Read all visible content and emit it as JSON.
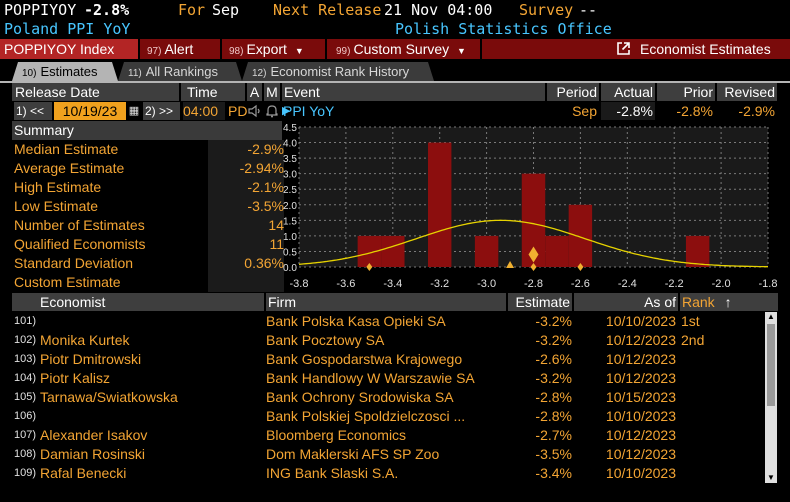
{
  "header": {
    "ticker": "POPPIYOY",
    "change": "-2.8%",
    "for_label": "For",
    "for_value": "Sep",
    "next_release_label": "Next Release",
    "next_release_value": "21 Nov 04:00",
    "survey_label": "Survey",
    "survey_value": "--",
    "name": "Poland PPI YoY",
    "source": "Polish Statistics Office"
  },
  "toolbar": {
    "index": "POPPIYOY Index",
    "alert_num": "97)",
    "alert": "Alert",
    "export_num": "98)",
    "export": "Export",
    "custom_num": "99)",
    "custom_survey": "Custom Survey",
    "economist_estimates": "Economist Estimates"
  },
  "tabs": [
    {
      "num": "10)",
      "label": "Estimates"
    },
    {
      "num": "11)",
      "label": "All Rankings"
    },
    {
      "num": "12)",
      "label": "Economist Rank History"
    }
  ],
  "release_grid": {
    "headers": {
      "release_date": "Release Date",
      "time": "Time",
      "a": "A",
      "m": "M",
      "event": "Event",
      "period": "Period",
      "actual": "Actual",
      "prior": "Prior",
      "revised": "Revised"
    },
    "prev_btn": "1) <<",
    "date": "10/19/23",
    "next_btn": "2) >>",
    "time": "04:00",
    "zone": "PD",
    "event": "PPI YoY",
    "period": "Sep",
    "actual": "-2.8%",
    "prior": "-2.8%",
    "revised": "-2.9%"
  },
  "summary": {
    "title": "Summary",
    "items": [
      {
        "label": "Median Estimate",
        "value": "-2.9%"
      },
      {
        "label": "Average Estimate",
        "value": "-2.94%"
      },
      {
        "label": "High Estimate",
        "value": "-2.1%"
      },
      {
        "label": "Low Estimate",
        "value": "-3.5%"
      },
      {
        "label": "Number of Estimates",
        "value": "14"
      },
      {
        "label": "Qualified Economists",
        "value": "11"
      },
      {
        "label": "Standard Deviation",
        "value": "0.36%"
      },
      {
        "label": "Custom Estimate",
        "value": ""
      }
    ]
  },
  "chart_data": {
    "type": "bar",
    "title": "",
    "xlabel": "",
    "ylabel": "",
    "xlim": [
      -3.8,
      -1.8
    ],
    "ylim": [
      0,
      4.5
    ],
    "x_ticks": [
      "-3.8",
      "-3.6",
      "-3.4",
      "-3.2",
      "-3.0",
      "-2.8",
      "-2.6",
      "-2.4",
      "-2.2",
      "-2.0",
      "-1.8"
    ],
    "y_ticks": [
      "0.0",
      "0.5",
      "1.0",
      "1.5",
      "2.0",
      "2.5",
      "3.0",
      "3.5",
      "4.0",
      "4.5"
    ],
    "bins": [
      {
        "x": -3.5,
        "count": 1
      },
      {
        "x": -3.4,
        "count": 1
      },
      {
        "x": -3.2,
        "count": 4
      },
      {
        "x": -3.0,
        "count": 1
      },
      {
        "x": -2.8,
        "count": 3
      },
      {
        "x": -2.7,
        "count": 1
      },
      {
        "x": -2.6,
        "count": 2
      },
      {
        "x": -2.1,
        "count": 1
      }
    ],
    "bar_width": 0.1,
    "normal_curve": {
      "mean": -2.94,
      "std": 0.36
    },
    "markers": {
      "actual": -2.8,
      "median": -2.9,
      "prior": -2.8,
      "revised": -2.9,
      "low": -3.5,
      "high": -2.1
    },
    "grid": true,
    "colors": {
      "bar": "#8c0e0e",
      "curve": "#e6d200",
      "marker": "#f0b030",
      "grid": "#7a7a7a"
    }
  },
  "table": {
    "headers": {
      "economist": "Economist",
      "firm": "Firm",
      "estimate": "Estimate",
      "as_of": "As of",
      "rank": "Rank",
      "sort": "↑"
    },
    "rows": [
      {
        "num": "101)",
        "economist": "",
        "firm": "Bank Polska Kasa Opieki SA",
        "estimate": "-3.2%",
        "as_of": "10/10/2023",
        "rank": "1st"
      },
      {
        "num": "102)",
        "economist": "Monika Kurtek",
        "firm": "Bank Pocztowy SA",
        "estimate": "-3.2%",
        "as_of": "10/12/2023",
        "rank": "2nd"
      },
      {
        "num": "103)",
        "economist": "Piotr Dmitrowski",
        "firm": "Bank Gospodarstwa Krajowego",
        "estimate": "-2.6%",
        "as_of": "10/12/2023",
        "rank": ""
      },
      {
        "num": "104)",
        "economist": "Piotr Kalisz",
        "firm": "Bank Handlowy W Warszawie SA",
        "estimate": "-3.2%",
        "as_of": "10/12/2023",
        "rank": ""
      },
      {
        "num": "105)",
        "economist": "Tarnawa/Swiatkowska",
        "firm": "Bank Ochrony Srodowiska SA",
        "estimate": "-2.8%",
        "as_of": "10/15/2023",
        "rank": ""
      },
      {
        "num": "106)",
        "economist": "",
        "firm": "Bank Polskiej Spoldzielczosci ...",
        "estimate": "-2.8%",
        "as_of": "10/10/2023",
        "rank": ""
      },
      {
        "num": "107)",
        "economist": "Alexander Isakov",
        "firm": "Bloomberg Economics",
        "estimate": "-2.7%",
        "as_of": "10/12/2023",
        "rank": ""
      },
      {
        "num": "108)",
        "economist": "Damian Rosinski",
        "firm": "Dom Maklerski AFS SP Zoo",
        "estimate": "-3.5%",
        "as_of": "10/12/2023",
        "rank": ""
      },
      {
        "num": "109)",
        "economist": "Rafal Benecki",
        "firm": "ING Bank Slaski S.A.",
        "estimate": "-3.4%",
        "as_of": "10/10/2023",
        "rank": ""
      }
    ]
  }
}
